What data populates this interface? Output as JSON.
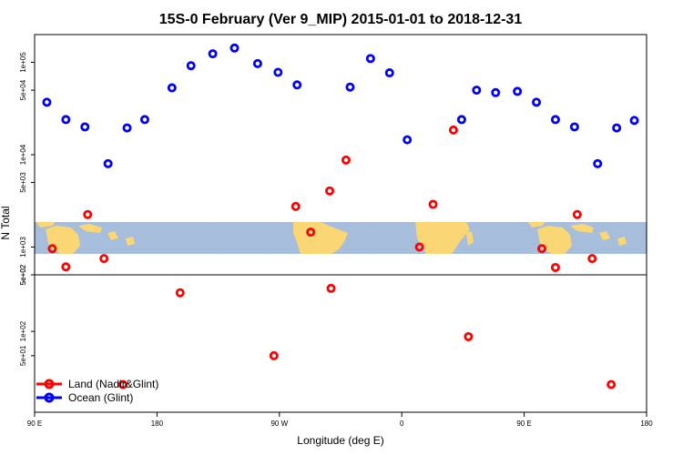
{
  "chart_data": {
    "type": "scatter",
    "title": "15S-0 February (Ver 9_MIP)   2015-01-01 to 2018-12-31",
    "xlabel": "Longitude (deg E)",
    "ylabel": "N Total",
    "x_ticks": [
      {
        "value": 90,
        "label": "90 E"
      },
      {
        "value": 180,
        "label": "180"
      },
      {
        "value": 270,
        "label": "90 W"
      },
      {
        "value": 360,
        "label": "0"
      },
      {
        "value": 450,
        "label": "90 E"
      },
      {
        "value": 540,
        "label": "180"
      }
    ],
    "xlim": [
      90,
      540
    ],
    "log_scale": true,
    "upper_panel": {
      "ylim": [
        500,
        200000
      ],
      "y_ticks": [
        {
          "value": 500,
          "label": "5e+02"
        },
        {
          "value": 1000,
          "label": "1e+03"
        },
        {
          "value": 5000,
          "label": "5e+03"
        },
        {
          "value": 10000,
          "label": "1e+04"
        },
        {
          "value": 50000,
          "label": "5e+04"
        },
        {
          "value": 100000,
          "label": "1e+05"
        }
      ]
    },
    "lower_panel": {
      "ylim": [
        10,
        500
      ],
      "y_ticks": [
        {
          "value": 50,
          "label": "5e+01"
        },
        {
          "value": 100,
          "label": "1e+02"
        },
        {
          "value": 500,
          "label": "5e+02"
        }
      ]
    },
    "series": [
      {
        "name": "Land (Nadir&Glint)",
        "color": "#ff0000",
        "points": [
          {
            "x": 103,
            "y": 960
          },
          {
            "x": 113,
            "y": 610
          },
          {
            "x": 129,
            "y": 2250
          },
          {
            "x": 141,
            "y": 750
          },
          {
            "x": 155,
            "y": 22
          },
          {
            "x": 197,
            "y": 300
          },
          {
            "x": 266,
            "y": 50
          },
          {
            "x": 282,
            "y": 2750
          },
          {
            "x": 293,
            "y": 1450
          },
          {
            "x": 307,
            "y": 4050
          },
          {
            "x": 319,
            "y": 8750
          },
          {
            "x": 308,
            "y": 340
          },
          {
            "x": 373,
            "y": 1000
          },
          {
            "x": 383,
            "y": 2900
          },
          {
            "x": 398,
            "y": 18500
          },
          {
            "x": 409,
            "y": 86
          },
          {
            "x": 463,
            "y": 960
          },
          {
            "x": 473,
            "y": 600
          },
          {
            "x": 489,
            "y": 2250
          },
          {
            "x": 500,
            "y": 750
          },
          {
            "x": 514,
            "y": 22
          }
        ]
      },
      {
        "name": "Ocean (Glint)",
        "color": "#0000ff",
        "points": [
          {
            "x": 99,
            "y": 37000
          },
          {
            "x": 113,
            "y": 24000
          },
          {
            "x": 127,
            "y": 20000
          },
          {
            "x": 144,
            "y": 8000
          },
          {
            "x": 158,
            "y": 19500
          },
          {
            "x": 171,
            "y": 24000
          },
          {
            "x": 191,
            "y": 53000
          },
          {
            "x": 205,
            "y": 92000
          },
          {
            "x": 221,
            "y": 124000
          },
          {
            "x": 237,
            "y": 143000
          },
          {
            "x": 254,
            "y": 97000
          },
          {
            "x": 269,
            "y": 78000
          },
          {
            "x": 283,
            "y": 57000
          },
          {
            "x": 322,
            "y": 54000
          },
          {
            "x": 337,
            "y": 110000
          },
          {
            "x": 351,
            "y": 77000
          },
          {
            "x": 364,
            "y": 14500
          },
          {
            "x": 404,
            "y": 24000
          },
          {
            "x": 415,
            "y": 50000
          },
          {
            "x": 429,
            "y": 47000
          },
          {
            "x": 445,
            "y": 48500
          },
          {
            "x": 459,
            "y": 37000
          },
          {
            "x": 473,
            "y": 24000
          },
          {
            "x": 487,
            "y": 20000
          },
          {
            "x": 504,
            "y": 8000
          },
          {
            "x": 518,
            "y": 19500
          },
          {
            "x": 531,
            "y": 23500
          }
        ]
      }
    ],
    "legend_position": "bottom-left",
    "grid": false
  }
}
